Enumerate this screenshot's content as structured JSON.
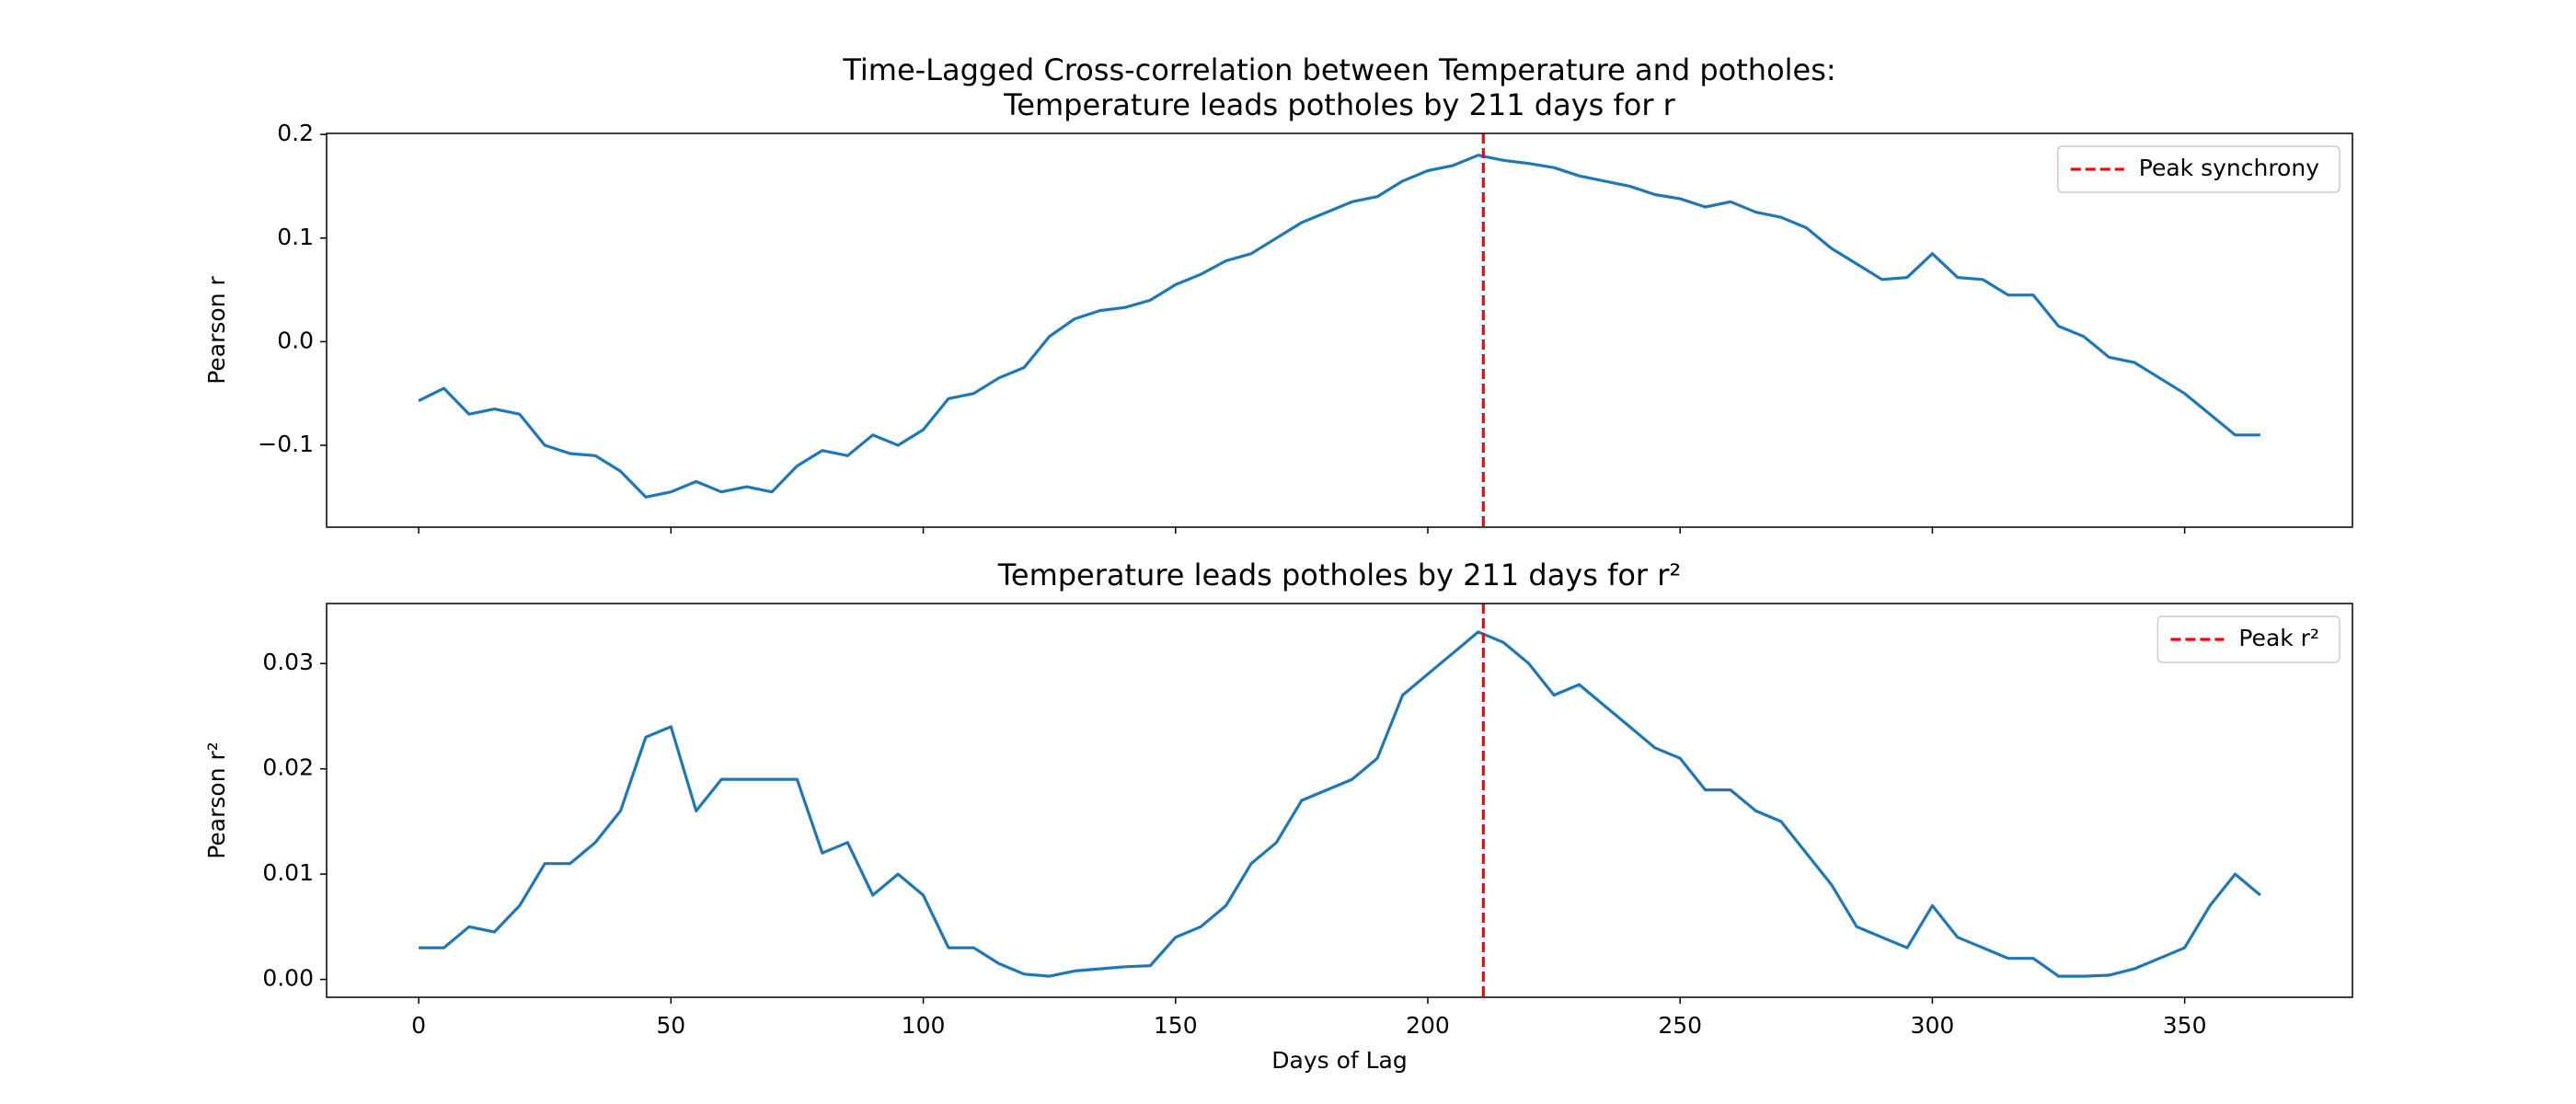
{
  "chart_data": [
    {
      "type": "line",
      "title": "Time-Lagged Cross-correlation between Temperature and potholes:",
      "subtitle": "Temperature leads potholes by 211 days for r",
      "y_label": "Pearson r",
      "x": [
        0,
        5,
        10,
        15,
        20,
        25,
        30,
        35,
        40,
        45,
        50,
        55,
        60,
        65,
        70,
        75,
        80,
        85,
        90,
        95,
        100,
        105,
        110,
        115,
        120,
        125,
        130,
        135,
        140,
        145,
        150,
        155,
        160,
        165,
        170,
        175,
        180,
        185,
        190,
        195,
        200,
        205,
        210,
        215,
        220,
        225,
        230,
        235,
        240,
        245,
        250,
        255,
        260,
        265,
        270,
        275,
        280,
        285,
        290,
        295,
        300,
        305,
        310,
        315,
        320,
        325,
        330,
        335,
        340,
        345,
        350,
        355,
        360,
        365
      ],
      "series": [
        {
          "color": "#1f77b4",
          "values": [
            -0.057,
            -0.045,
            -0.07,
            -0.065,
            -0.07,
            -0.1,
            -0.108,
            -0.11,
            -0.125,
            -0.15,
            -0.145,
            -0.135,
            -0.145,
            -0.14,
            -0.145,
            -0.12,
            -0.105,
            -0.11,
            -0.09,
            -0.1,
            -0.085,
            -0.055,
            -0.05,
            -0.035,
            -0.025,
            0.005,
            0.022,
            0.03,
            0.033,
            0.04,
            0.055,
            0.065,
            0.078,
            0.085,
            0.1,
            0.115,
            0.125,
            0.135,
            0.14,
            0.155,
            0.165,
            0.17,
            0.18,
            0.175,
            0.172,
            0.168,
            0.16,
            0.155,
            0.15,
            0.142,
            0.138,
            0.13,
            0.135,
            0.125,
            0.12,
            0.11,
            0.09,
            0.075,
            0.06,
            0.062,
            0.085,
            0.062,
            0.06,
            0.045,
            0.045,
            0.015,
            0.005,
            -0.015,
            -0.02,
            -0.035,
            -0.05,
            -0.07,
            -0.09,
            -0.09
          ]
        }
      ],
      "vlines": [
        {
          "x": 211,
          "label": "Peak synchrony",
          "color": "#ff0000",
          "style": "dashed"
        }
      ],
      "xlim": [
        -18.25,
        383.25
      ],
      "xticks": [
        0,
        50,
        100,
        150,
        200,
        250,
        300,
        350
      ],
      "ylim": [
        -0.179,
        0.201
      ],
      "yticks": [
        {
          "value": -0.1,
          "label": "−0.1"
        },
        {
          "value": 0,
          "label": "0.0"
        },
        0.1,
        0.2
      ],
      "legend": "upper right"
    },
    {
      "type": "line",
      "title": "Temperature leads potholes by 211 days for r²",
      "y_label": "Pearson r²",
      "x_label": "Days of Lag",
      "x": [
        0,
        5,
        10,
        15,
        20,
        25,
        30,
        35,
        40,
        45,
        50,
        55,
        60,
        65,
        70,
        75,
        80,
        85,
        90,
        95,
        100,
        105,
        110,
        115,
        120,
        125,
        130,
        135,
        140,
        145,
        150,
        155,
        160,
        165,
        170,
        175,
        180,
        185,
        190,
        195,
        200,
        205,
        210,
        215,
        220,
        225,
        230,
        235,
        240,
        245,
        250,
        255,
        260,
        265,
        270,
        275,
        280,
        285,
        290,
        295,
        300,
        305,
        310,
        315,
        320,
        325,
        330,
        335,
        340,
        345,
        350,
        355,
        360,
        365
      ],
      "series": [
        {
          "color": "#1f77b4",
          "values": [
            0.003,
            0.003,
            0.005,
            0.0045,
            0.007,
            0.011,
            0.011,
            0.013,
            0.016,
            0.023,
            0.024,
            0.016,
            0.019,
            0.019,
            0.019,
            0.019,
            0.012,
            0.013,
            0.008,
            0.01,
            0.008,
            0.003,
            0.003,
            0.0015,
            0.0005,
            0.0003,
            0.0008,
            0.001,
            0.0012,
            0.0013,
            0.004,
            0.005,
            0.007,
            0.011,
            0.013,
            0.017,
            0.018,
            0.019,
            0.021,
            0.027,
            0.029,
            0.031,
            0.033,
            0.032,
            0.03,
            0.027,
            0.028,
            0.026,
            0.024,
            0.022,
            0.021,
            0.018,
            0.018,
            0.016,
            0.015,
            0.012,
            0.009,
            0.005,
            0.004,
            0.003,
            0.007,
            0.004,
            0.003,
            0.002,
            0.002,
            0.0003,
            0.0003,
            0.0004,
            0.001,
            0.002,
            0.003,
            0.007,
            0.01,
            0.008
          ]
        }
      ],
      "vlines": [
        {
          "x": 211,
          "label": "Peak r²",
          "color": "#ff0000",
          "style": "dashed"
        }
      ],
      "xlim": [
        -18.25,
        383.25
      ],
      "xticks": [
        0,
        50,
        100,
        150,
        200,
        250,
        300,
        350
      ],
      "ylim": [
        -0.0017,
        0.0357
      ],
      "yticks": [
        {
          "value": 0,
          "label": "0.00"
        },
        0.01,
        0.02,
        0.03
      ],
      "legend": "upper right"
    }
  ]
}
